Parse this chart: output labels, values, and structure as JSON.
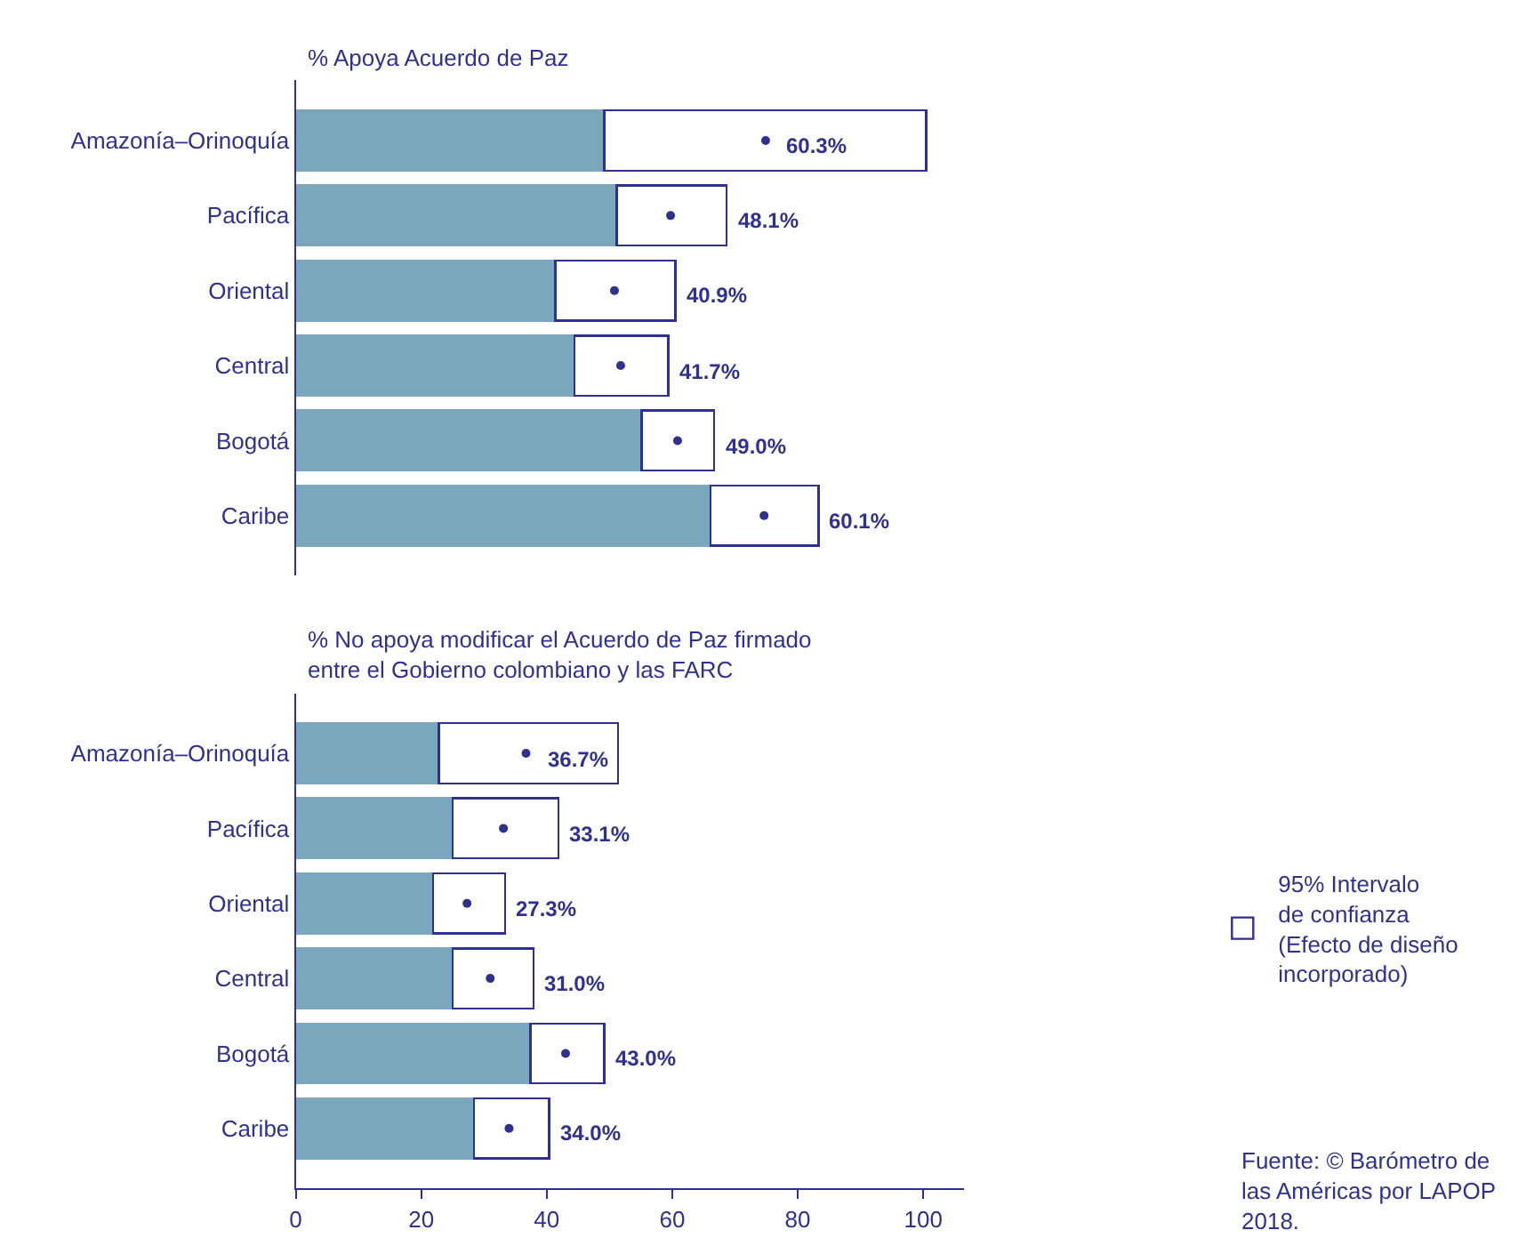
{
  "chart_data": [
    {
      "type": "bar",
      "orientation": "horizontal",
      "stacked": true,
      "title": "% Apoya Acuerdo de Paz",
      "categories": [
        "Amazonía–Orinoquía",
        "Pacífica",
        "Oriental",
        "Central",
        "Bogotá",
        "Caribe"
      ],
      "series": [
        {
          "color": "#7ba7bd",
          "values": [
            39.6,
            41.2,
            33.3,
            35.8,
            44.4,
            53.2
          ]
        },
        {
          "color": "#ffffff",
          "values": [
            41.3,
            14.1,
            15.4,
            12.0,
            9.3,
            13.9
          ]
        },
        {
          "type": "scatter",
          "color": "#2e3192",
          "values": [
            60.3,
            48.1,
            40.9,
            41.7,
            49.0,
            60.1
          ],
          "value_labels": [
            "60.3%",
            "48.1%",
            "40.9%",
            "41.7%",
            "49.0%",
            "60.1%"
          ]
        }
      ],
      "tick_labels": "y",
      "legend": false
    },
    {
      "type": "bar",
      "orientation": "horizontal",
      "stacked": true,
      "title": "% No apoya modificar el Acuerdo de Paz firmado\nentre el Gobierno colombiano y las FARC",
      "categories": [
        "Amazonía–Orinoquía",
        "Pacífica",
        "Oriental",
        "Central",
        "Bogotá",
        "Caribe"
      ],
      "series": [
        {
          "color": "#7ba7bd",
          "values": [
            22.8,
            25.0,
            21.9,
            25.0,
            37.4,
            28.4
          ]
        },
        {
          "name": "95% Intervalo\nde confianza\n(Efecto de diseño\nincorporado)",
          "color": "#ffffff",
          "values": [
            28.6,
            16.9,
            11.5,
            12.9,
            11.8,
            12.0
          ]
        },
        {
          "type": "scatter",
          "color": "#2e3192",
          "values": [
            36.7,
            33.1,
            27.3,
            31.0,
            43.0,
            34.0
          ],
          "value_labels": [
            "36.7%",
            "33.1%",
            "27.3%",
            "31.0%",
            "43.0%",
            "34.0%"
          ]
        }
      ],
      "xlim": [
        0,
        106.5
      ],
      "xticks": [
        0,
        20,
        40,
        60,
        80,
        100
      ],
      "legend": "right",
      "annotations": [
        "Fuente: © Barómetro de\nlas Américas por LAPOP\n2018."
      ]
    }
  ]
}
